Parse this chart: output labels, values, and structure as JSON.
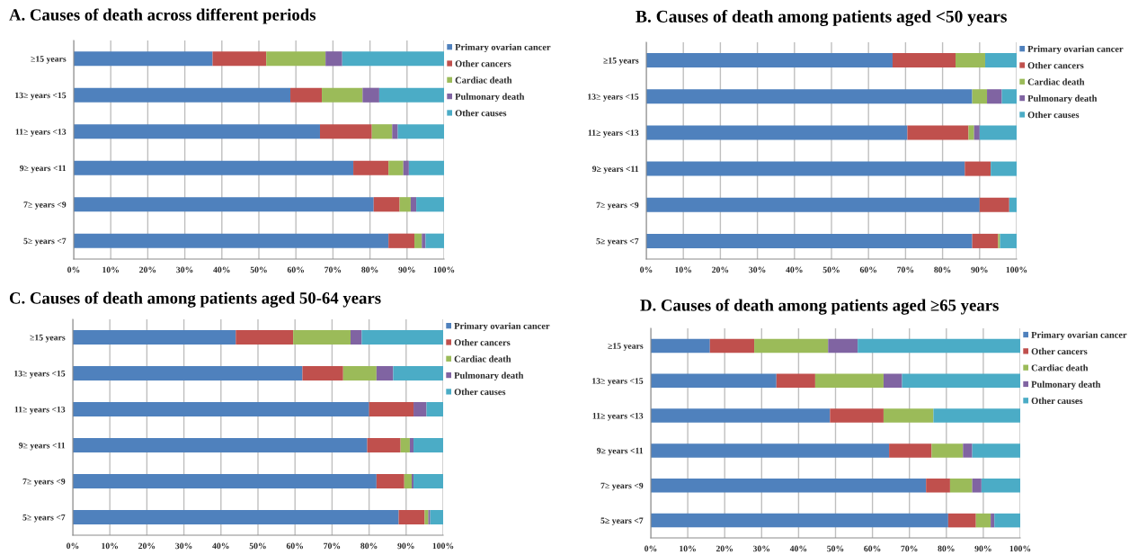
{
  "chart_data": [
    {
      "type": "bar",
      "orientation": "horizontal",
      "stacked": true,
      "title": "A. Causes of death across different periods",
      "categories": [
        "≥15 years",
        "13≥ years <15",
        "11≥ years <13",
        "9≥ years <11",
        "7≥ years <9",
        "5≥ years <7"
      ],
      "series": [
        {
          "name": "Primary ovarian cancer",
          "color": "#4f81bd",
          "values": [
            37.5,
            58.5,
            66.5,
            75.5,
            81,
            85
          ]
        },
        {
          "name": "Other cancers",
          "color": "#c0504d",
          "values": [
            14.5,
            8.5,
            14,
            9.5,
            7,
            7
          ]
        },
        {
          "name": "Cardiac death",
          "color": "#9bbb59",
          "values": [
            16,
            11,
            5.5,
            4,
            3,
            2
          ]
        },
        {
          "name": "Pulmonary death",
          "color": "#8064a2",
          "values": [
            4.5,
            4.5,
            1.5,
            1.5,
            1.5,
            1
          ]
        },
        {
          "name": "Other causes",
          "color": "#4bacc6",
          "values": [
            27.5,
            17.5,
            12.5,
            9.5,
            7.5,
            5
          ]
        }
      ],
      "xlim": [
        0,
        100
      ],
      "xticks": [
        {
          "value": 0,
          "label": "0%"
        },
        {
          "value": 10,
          "label": "10%"
        },
        {
          "value": 20,
          "label": "20%"
        },
        {
          "value": 30,
          "label": "30%"
        },
        {
          "value": 40,
          "label": "40%"
        },
        {
          "value": 50,
          "label": "50%"
        },
        {
          "value": 60,
          "label": "60%"
        },
        {
          "value": 70,
          "label": "70%"
        },
        {
          "value": 80,
          "label": "80%"
        },
        {
          "value": 90,
          "label": "90%"
        },
        {
          "value": 100,
          "label": "100%"
        }
      ],
      "grid": "x",
      "legend": "right"
    },
    {
      "type": "bar",
      "orientation": "horizontal",
      "stacked": true,
      "title": "B. Causes of death among patients aged <50 years",
      "categories": [
        "≥15 years",
        "13≥ years <15",
        "11≥ years <13",
        "9≥ years <11",
        "7≥ years <9",
        "5≥ years <7"
      ],
      "series": [
        {
          "name": "Primary ovarian cancer",
          "color": "#4f81bd",
          "values": [
            66.5,
            88,
            70.5,
            86,
            90,
            88
          ]
        },
        {
          "name": "Other cancers",
          "color": "#c0504d",
          "values": [
            17,
            0,
            16.5,
            7,
            8,
            7
          ]
        },
        {
          "name": "Cardiac death",
          "color": "#9bbb59",
          "values": [
            8,
            4,
            1.5,
            0,
            0,
            0.5
          ]
        },
        {
          "name": "Pulmonary death",
          "color": "#8064a2",
          "values": [
            0,
            4,
            1.5,
            0,
            0,
            0
          ]
        },
        {
          "name": "Other causes",
          "color": "#4bacc6",
          "values": [
            8.5,
            4,
            10,
            7,
            2,
            4.5
          ]
        }
      ],
      "xlim": [
        0,
        100
      ],
      "xticks": [
        {
          "value": 0,
          "label": "0%"
        },
        {
          "value": 10,
          "label": "10%"
        },
        {
          "value": 20,
          "label": "20%"
        },
        {
          "value": 30,
          "label": "30%"
        },
        {
          "value": 40,
          "label": "40%"
        },
        {
          "value": 50,
          "label": "50%"
        },
        {
          "value": 60,
          "label": "60%"
        },
        {
          "value": 70,
          "label": "70%"
        },
        {
          "value": 80,
          "label": "80%"
        },
        {
          "value": 90,
          "label": "90%"
        },
        {
          "value": 100,
          "label": "100%"
        }
      ],
      "grid": "x",
      "legend": "right"
    },
    {
      "type": "bar",
      "orientation": "horizontal",
      "stacked": true,
      "title": "C. Causes of death among patients aged 50-64 years",
      "categories": [
        "≥15 years",
        "13≥ years <15",
        "11≥ years <13",
        "9≥ years <11",
        "7≥ years <9",
        "5≥ years <7"
      ],
      "series": [
        {
          "name": "Primary ovarian cancer",
          "color": "#4f81bd",
          "values": [
            44,
            62,
            80,
            79.5,
            82,
            88
          ]
        },
        {
          "name": "Other cancers",
          "color": "#c0504d",
          "values": [
            15.5,
            11,
            12,
            9,
            7.5,
            7
          ]
        },
        {
          "name": "Cardiac death",
          "color": "#9bbb59",
          "values": [
            15.5,
            9,
            0,
            2.5,
            2,
            1
          ]
        },
        {
          "name": "Pulmonary death",
          "color": "#8064a2",
          "values": [
            3,
            4.5,
            3.5,
            1,
            0.5,
            0.5
          ]
        },
        {
          "name": "Other causes",
          "color": "#4bacc6",
          "values": [
            22,
            13.5,
            4.5,
            8,
            8,
            3.5
          ]
        }
      ],
      "xlim": [
        0,
        100
      ],
      "xticks": [
        {
          "value": 0,
          "label": "0%"
        },
        {
          "value": 10,
          "label": "10%"
        },
        {
          "value": 20,
          "label": "20%"
        },
        {
          "value": 30,
          "label": "30%"
        },
        {
          "value": 40,
          "label": "40%"
        },
        {
          "value": 50,
          "label": "50%"
        },
        {
          "value": 60,
          "label": "60%"
        },
        {
          "value": 70,
          "label": "70%"
        },
        {
          "value": 80,
          "label": "80%"
        },
        {
          "value": 90,
          "label": "90%"
        },
        {
          "value": 100,
          "label": "100%"
        }
      ],
      "grid": "x",
      "legend": "right"
    },
    {
      "type": "bar",
      "orientation": "horizontal",
      "stacked": true,
      "title": "D. Causes of death among patients aged ≥65 years",
      "categories": [
        "≥15 years",
        "13≥ years <15",
        "11≥ years <13",
        "9≥ years <11",
        "7≥ years <9",
        "5≥ years <7"
      ],
      "series": [
        {
          "name": "Primary ovarian cancer",
          "color": "#4f81bd",
          "values": [
            16,
            34,
            48.5,
            64.5,
            74.5,
            80.5
          ]
        },
        {
          "name": "Other cancers",
          "color": "#c0504d",
          "values": [
            12,
            10.5,
            14.5,
            11.5,
            6.5,
            7.5
          ]
        },
        {
          "name": "Cardiac death",
          "color": "#9bbb59",
          "values": [
            20,
            18.5,
            13.5,
            8.5,
            6,
            4
          ]
        },
        {
          "name": "Pulmonary death",
          "color": "#8064a2",
          "values": [
            8,
            5,
            0,
            2.5,
            2.5,
            1
          ]
        },
        {
          "name": "Other causes",
          "color": "#4bacc6",
          "values": [
            44,
            32,
            23.5,
            13,
            10.5,
            7
          ]
        }
      ],
      "xlim": [
        0,
        100
      ],
      "xticks": [
        {
          "value": 0,
          "label": "0%"
        },
        {
          "value": 10,
          "label": "10%"
        },
        {
          "value": 20,
          "label": "20%"
        },
        {
          "value": 30,
          "label": "30%"
        },
        {
          "value": 40,
          "label": "40%"
        },
        {
          "value": 50,
          "label": "50%"
        },
        {
          "value": 60,
          "label": "60%"
        },
        {
          "value": 70,
          "label": "70%"
        },
        {
          "value": 80,
          "label": "80%"
        },
        {
          "value": 90,
          "label": "90%"
        },
        {
          "value": 100,
          "label": "100%"
        }
      ],
      "grid": "x",
      "legend": "right"
    }
  ]
}
